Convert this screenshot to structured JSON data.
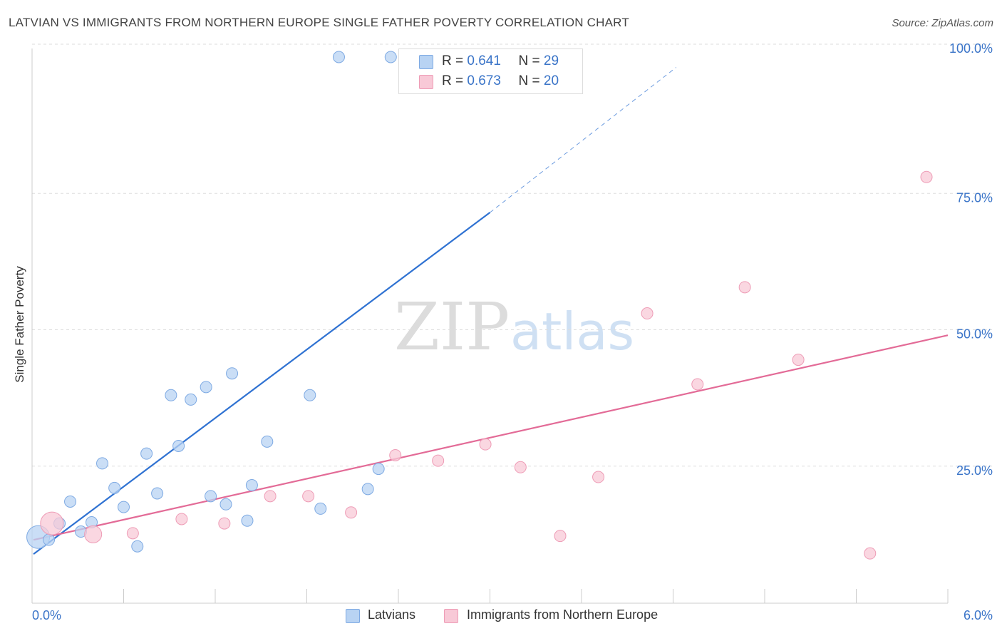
{
  "header": {
    "title": "LATVIAN VS IMMIGRANTS FROM NORTHERN EUROPE SINGLE FATHER POVERTY CORRELATION CHART",
    "source": "Source: ZipAtlas.com"
  },
  "watermark": {
    "zip": "ZIP",
    "atlas": "atlas"
  },
  "legend_top": {
    "rows": [
      {
        "r_label": "R =",
        "r_value": "0.641",
        "n_label": "N =",
        "n_value": "29"
      },
      {
        "r_label": "R =",
        "r_value": "0.673",
        "n_label": "N =",
        "n_value": "20"
      }
    ]
  },
  "legend_bottom": {
    "series1": "Latvians",
    "series2": "Immigrants from Northern Europe"
  },
  "colors": {
    "blue_fill": "#b8d3f3",
    "blue_stroke": "#7eaae3",
    "blue_line": "#2f72d2",
    "pink_fill": "#f8c9d7",
    "pink_stroke": "#ee9cb6",
    "pink_line": "#e36b97",
    "tick_text": "#3a74c8",
    "grid": "#dddddd"
  },
  "chart_data": {
    "type": "scatter",
    "title": "LATVIAN VS IMMIGRANTS FROM NORTHERN EUROPE SINGLE FATHER POVERTY CORRELATION CHART",
    "xlabel": "",
    "ylabel": "Single Father Poverty",
    "xlim": [
      0,
      6
    ],
    "ylim": [
      0,
      100
    ],
    "x_tick_labels": [
      "0.0%",
      "6.0%"
    ],
    "y_ticks": [
      25,
      50,
      75,
      100
    ],
    "y_tick_labels": [
      "25.0%",
      "50.0%",
      "75.0%",
      "100.0%"
    ],
    "grid": true,
    "legend_position": "top-center",
    "series": [
      {
        "name": "Latvians",
        "r": 0.641,
        "n": 29,
        "trend": {
          "x0": 0,
          "y0": 6.0,
          "x1": 3.0,
          "y1": 71.5,
          "dash_to_x": 4.22,
          "dash_to_y": 98.1
        },
        "points": [
          {
            "x": 0.04,
            "y": 12.0,
            "size": 3
          },
          {
            "x": 0.11,
            "y": 11.5,
            "size": 1
          },
          {
            "x": 0.18,
            "y": 14.5,
            "size": 1
          },
          {
            "x": 0.25,
            "y": 18.5,
            "size": 1
          },
          {
            "x": 0.32,
            "y": 13.0,
            "size": 1
          },
          {
            "x": 0.39,
            "y": 14.7,
            "size": 1
          },
          {
            "x": 0.46,
            "y": 25.5,
            "size": 1
          },
          {
            "x": 0.54,
            "y": 21.0,
            "size": 1
          },
          {
            "x": 0.6,
            "y": 17.5,
            "size": 1
          },
          {
            "x": 0.69,
            "y": 10.3,
            "size": 1
          },
          {
            "x": 0.75,
            "y": 27.3,
            "size": 1
          },
          {
            "x": 0.82,
            "y": 20.0,
            "size": 1
          },
          {
            "x": 0.91,
            "y": 38.0,
            "size": 1
          },
          {
            "x": 0.96,
            "y": 28.7,
            "size": 1
          },
          {
            "x": 1.04,
            "y": 37.2,
            "size": 1
          },
          {
            "x": 1.14,
            "y": 39.5,
            "size": 1
          },
          {
            "x": 1.17,
            "y": 19.5,
            "size": 1
          },
          {
            "x": 1.27,
            "y": 18.0,
            "size": 1
          },
          {
            "x": 1.31,
            "y": 42.0,
            "size": 1
          },
          {
            "x": 1.41,
            "y": 15.0,
            "size": 1
          },
          {
            "x": 1.44,
            "y": 21.5,
            "size": 1
          },
          {
            "x": 1.54,
            "y": 29.5,
            "size": 1
          },
          {
            "x": 1.82,
            "y": 38.0,
            "size": 1
          },
          {
            "x": 1.89,
            "y": 17.2,
            "size": 1
          },
          {
            "x": 2.01,
            "y": 100.0,
            "size": 1
          },
          {
            "x": 2.2,
            "y": 20.8,
            "size": 1
          },
          {
            "x": 2.27,
            "y": 24.5,
            "size": 1
          },
          {
            "x": 2.35,
            "y": 100.0,
            "size": 1
          },
          {
            "x": 3.0,
            "y": 100.0,
            "size": 1
          }
        ]
      },
      {
        "name": "Immigrants from Northern Europe",
        "r": 0.673,
        "n": 20,
        "trend": {
          "x0": 0,
          "y0": 8.6,
          "x1": 6.0,
          "y1": 49.0
        },
        "points": [
          {
            "x": 0.13,
            "y": 14.5,
            "size": 3
          },
          {
            "x": 0.4,
            "y": 12.5,
            "size": 2
          },
          {
            "x": 0.66,
            "y": 12.7,
            "size": 1
          },
          {
            "x": 0.98,
            "y": 15.3,
            "size": 1
          },
          {
            "x": 1.26,
            "y": 14.5,
            "size": 1
          },
          {
            "x": 1.56,
            "y": 19.5,
            "size": 1
          },
          {
            "x": 1.81,
            "y": 19.5,
            "size": 1
          },
          {
            "x": 2.09,
            "y": 16.5,
            "size": 1
          },
          {
            "x": 2.38,
            "y": 27.0,
            "size": 1
          },
          {
            "x": 2.66,
            "y": 26.0,
            "size": 1
          },
          {
            "x": 2.97,
            "y": 29.0,
            "size": 1
          },
          {
            "x": 3.2,
            "y": 24.8,
            "size": 1
          },
          {
            "x": 3.46,
            "y": 12.2,
            "size": 1
          },
          {
            "x": 3.71,
            "y": 23.0,
            "size": 1
          },
          {
            "x": 4.03,
            "y": 53.0,
            "size": 1
          },
          {
            "x": 4.36,
            "y": 40.0,
            "size": 1
          },
          {
            "x": 4.67,
            "y": 57.8,
            "size": 1
          },
          {
            "x": 5.02,
            "y": 44.5,
            "size": 1
          },
          {
            "x": 5.49,
            "y": 9.0,
            "size": 1
          },
          {
            "x": 5.86,
            "y": 78.0,
            "size": 1
          }
        ]
      }
    ]
  }
}
